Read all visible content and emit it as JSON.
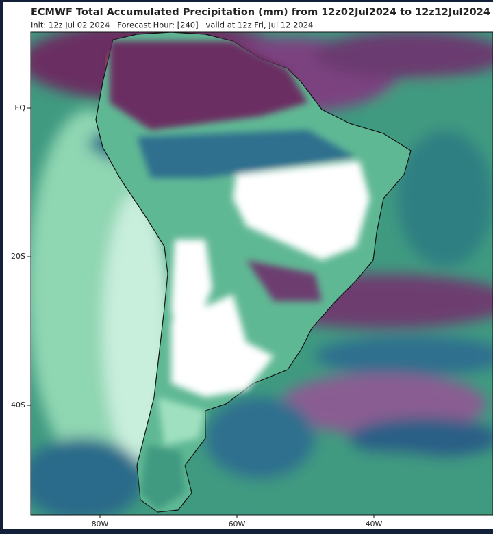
{
  "header": {
    "title": "ECMWF Total Accumulated Precipitation (mm) from 12z02Jul2024 to 12z12Jul2024",
    "subtitle": "Init: 12z Jul 02 2024   Forecast Hour: [240]   valid at 12z Fri, Jul 12 2024"
  },
  "map": {
    "lat_labels": [
      "EQ",
      "20S",
      "40S"
    ],
    "lon_labels": [
      "80W",
      "60W",
      "40W"
    ]
  }
}
